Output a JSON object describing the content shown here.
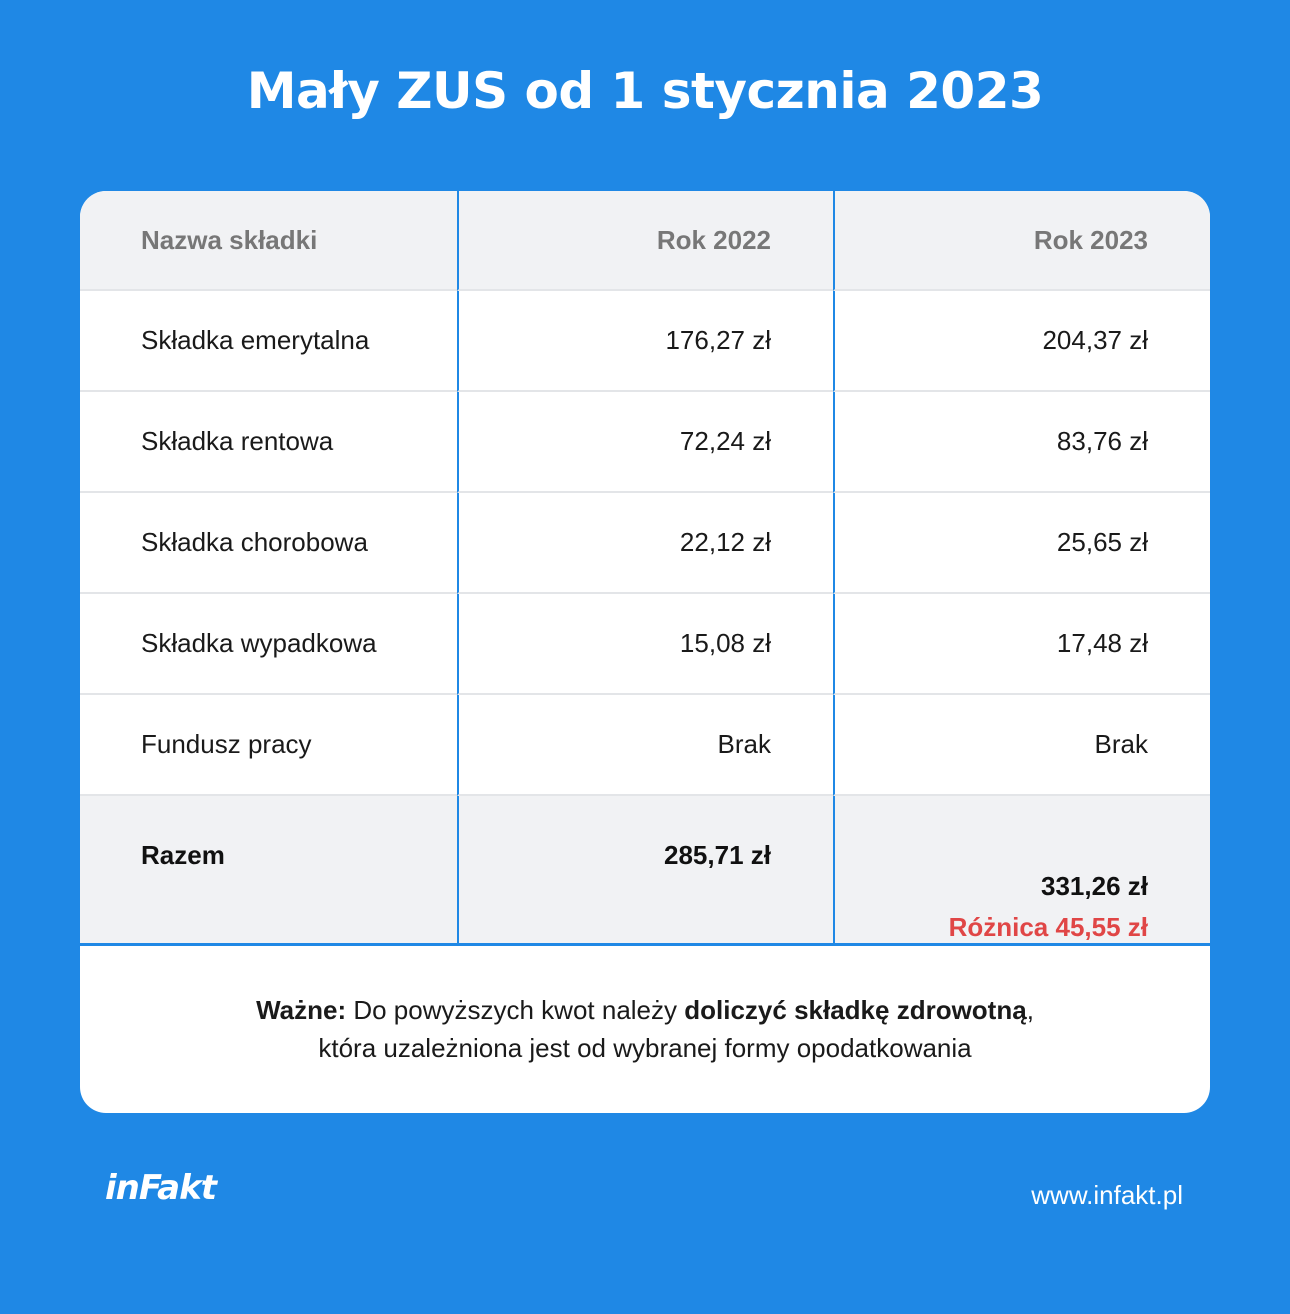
{
  "title": "Mały ZUS od 1 stycznia 2023",
  "table": {
    "headers": [
      "Nazwa składki",
      "Rok 2022",
      "Rok 2023"
    ],
    "rows": [
      {
        "name": "Składka emerytalna",
        "y2022": "176,27 zł",
        "y2023": "204,37 zł"
      },
      {
        "name": "Składka rentowa",
        "y2022": "72,24 zł",
        "y2023": "83,76 zł"
      },
      {
        "name": "Składka chorobowa",
        "y2022": "22,12 zł",
        "y2023": "25,65 zł"
      },
      {
        "name": "Składka wypadkowa",
        "y2022": "15,08 zł",
        "y2023": "17,48 zł"
      },
      {
        "name": "Fundusz pracy",
        "y2022": "Brak",
        "y2023": "Brak"
      }
    ],
    "total": {
      "label": "Razem",
      "y2022": "285,71 zł",
      "y2023": "331,26 zł",
      "difference": "Różnica 45,55 zł"
    }
  },
  "note": {
    "bold_prefix": "Ważne:",
    "text1": " Do powyższych kwot należy ",
    "bold_mid": "doliczyć składkę zdrowotną",
    "text2": ",",
    "line2": "która uzależniona jest od wybranej formy opodatkowania"
  },
  "footer": {
    "logo": "inFakt",
    "url": "www.infakt.pl"
  },
  "colors": {
    "background": "#1f88e5",
    "header_bg": "#f1f2f4",
    "difference": "#e04646"
  }
}
